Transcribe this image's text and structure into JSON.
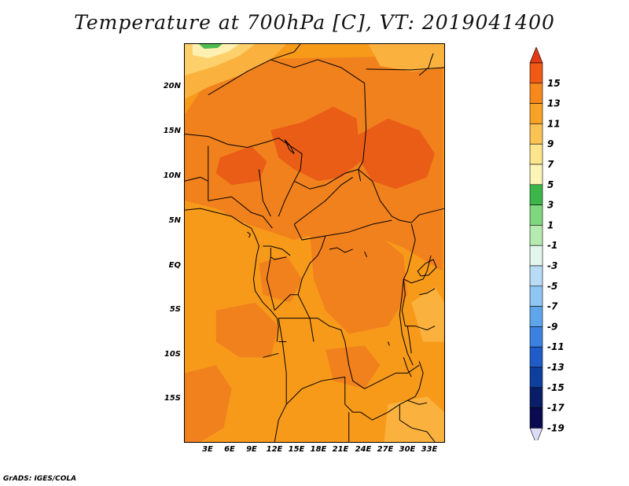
{
  "title": "Temperature at 700hPa [C], VT: 2019041400",
  "credit": "GrADS: IGES/COLA",
  "lat_labels": [
    "20N",
    "15N",
    "10N",
    "5N",
    "EQ",
    "5S",
    "10S",
    "15S"
  ],
  "lon_labels": [
    "3E",
    "6E",
    "9E",
    "12E",
    "15E",
    "18E",
    "21E",
    "24E",
    "27E",
    "30E",
    "33E"
  ],
  "colorbar": {
    "labels": [
      "15",
      "13",
      "11",
      "9",
      "7",
      "5",
      "3",
      "1",
      "-1",
      "-3",
      "-5",
      "-7",
      "-9",
      "-11",
      "-13",
      "-15",
      "-17",
      "-19"
    ],
    "colors": [
      "#e43a12",
      "#f05a14",
      "#f7881c",
      "#f9a326",
      "#fbc353",
      "#fde58d",
      "#fbf4b7",
      "#3cb64a",
      "#7fd87e",
      "#b5ebb1",
      "#e3f6ee",
      "#b9dcf6",
      "#8fc5f2",
      "#5ea5eb",
      "#3b82e0",
      "#1f5cc8",
      "#0e3f9d",
      "#091e66",
      "#0a0a50",
      "#dcdcf7"
    ]
  },
  "map_colors": {
    "t12": "#f1811d",
    "t10": "#f79a1a",
    "t13": "#ea5d17",
    "t8": "#fbb13e",
    "t6": "#fdd06b",
    "t4": "#fdf0b0",
    "t2": "#4bbd4e"
  }
}
